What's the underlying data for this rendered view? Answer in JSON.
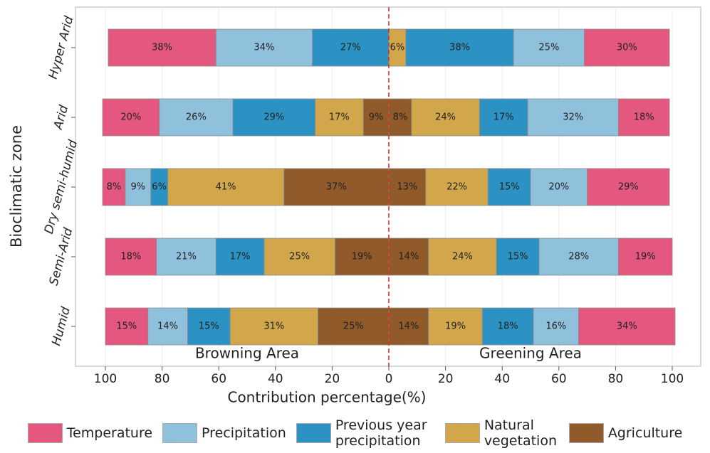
{
  "chart_data": {
    "type": "diverging_bar",
    "x_label": "Contribution percentage(%)",
    "y_label": "Bioclimatic zone",
    "categories": [
      "Hyper Arid",
      "Arid",
      "Dry semi-humid",
      "Semi-Arid",
      "Humid"
    ],
    "sides": [
      {
        "label": "Browning Area",
        "sign": -1
      },
      {
        "label": "Greening Area",
        "sign": 1
      }
    ],
    "xlim": [
      -100,
      100
    ],
    "xticks": [
      {
        "value": -100,
        "label": "100"
      },
      {
        "value": -80,
        "label": "80"
      },
      {
        "value": -60,
        "label": "60"
      },
      {
        "value": -40,
        "label": "40"
      },
      {
        "value": -20,
        "label": "20"
      },
      0,
      20,
      40,
      60,
      80,
      100
    ],
    "grid": true,
    "series": [
      {
        "name": "Temperature",
        "color": "#e4587f",
        "values": [
          [
            38,
            20,
            8,
            18,
            15
          ],
          [
            30,
            18,
            29,
            19,
            34
          ]
        ],
        "value_labels": [
          [
            "38%",
            "20%",
            "8%",
            "18%",
            "15%"
          ],
          [
            "30%",
            "18%",
            "29%",
            "19%",
            "34%"
          ]
        ]
      },
      {
        "name": "Precipitation",
        "color": "#8fc1dd",
        "values": [
          [
            34,
            26,
            9,
            21,
            14
          ],
          [
            25,
            32,
            20,
            28,
            16
          ]
        ],
        "value_labels": [
          [
            "34%",
            "26%",
            "9%",
            "21%",
            "14%"
          ],
          [
            "25%",
            "32%",
            "20%",
            "28%",
            "16%"
          ]
        ]
      },
      {
        "name": "Previous year precipitation",
        "color": "#2b92c3",
        "values": [
          [
            27,
            29,
            6,
            17,
            15
          ],
          [
            38,
            17,
            15,
            15,
            18
          ]
        ],
        "value_labels": [
          [
            "27%",
            "29%",
            "6%",
            "17%",
            "15%"
          ],
          [
            "38%",
            "17%",
            "15%",
            "15%",
            "18%"
          ]
        ]
      },
      {
        "name": "Natural vegetation",
        "color": "#d2a74b",
        "values": [
          [
            null,
            17,
            41,
            25,
            31
          ],
          [
            6,
            24,
            22,
            24,
            19
          ]
        ],
        "value_labels": [
          [
            null,
            "17%",
            "41%",
            "25%",
            "31%"
          ],
          [
            "6%",
            "24%",
            "22%",
            "24%",
            "19%"
          ]
        ]
      },
      {
        "name": "Agriculture",
        "color": "#905a2a",
        "values": [
          [
            null,
            9,
            37,
            19,
            25
          ],
          [
            null,
            8,
            13,
            14,
            14
          ]
        ],
        "value_labels": [
          [
            null,
            "9%",
            "37%",
            "19%",
            "25%"
          ],
          [
            null,
            "8%",
            "13%",
            "14%",
            "14%"
          ]
        ]
      }
    ]
  }
}
